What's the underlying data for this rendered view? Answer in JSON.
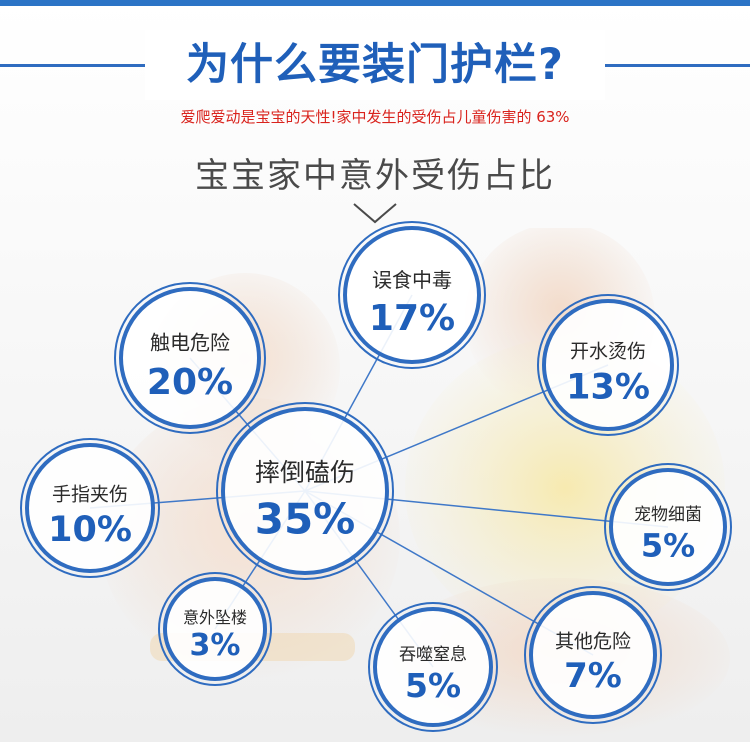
{
  "header": {
    "title": "为什么要装门护栏?",
    "subtitle": "爱爬爱动是宝宝的天性!家中发生的受伤占儿童伤害的 63%",
    "section_title": "宝宝家中意外受伤占比"
  },
  "colors": {
    "accent_blue": "#1f5fb9",
    "ring_blue": "#2f6cc0",
    "alert_red": "#d9231d",
    "text_dark": "#2b2b2b"
  },
  "icons": {
    "divider": "chevron-down-icon"
  },
  "diagram": {
    "center": {
      "label": "摔倒磕伤",
      "value": "35%"
    },
    "nodes": [
      {
        "id": "poisoning",
        "label": "误食中毒",
        "value": "17%"
      },
      {
        "id": "electric",
        "label": "触电危险",
        "value": "20%"
      },
      {
        "id": "scald",
        "label": "开水烫伤",
        "value": "13%"
      },
      {
        "id": "finger",
        "label": "手指夹伤",
        "value": "10%"
      },
      {
        "id": "pet",
        "label": "宠物细菌",
        "value": "5%"
      },
      {
        "id": "fall",
        "label": "意外坠楼",
        "value": "3%"
      },
      {
        "id": "choking",
        "label": "吞噬窒息",
        "value": "5%"
      },
      {
        "id": "other",
        "label": "其他危险",
        "value": "7%"
      }
    ]
  }
}
